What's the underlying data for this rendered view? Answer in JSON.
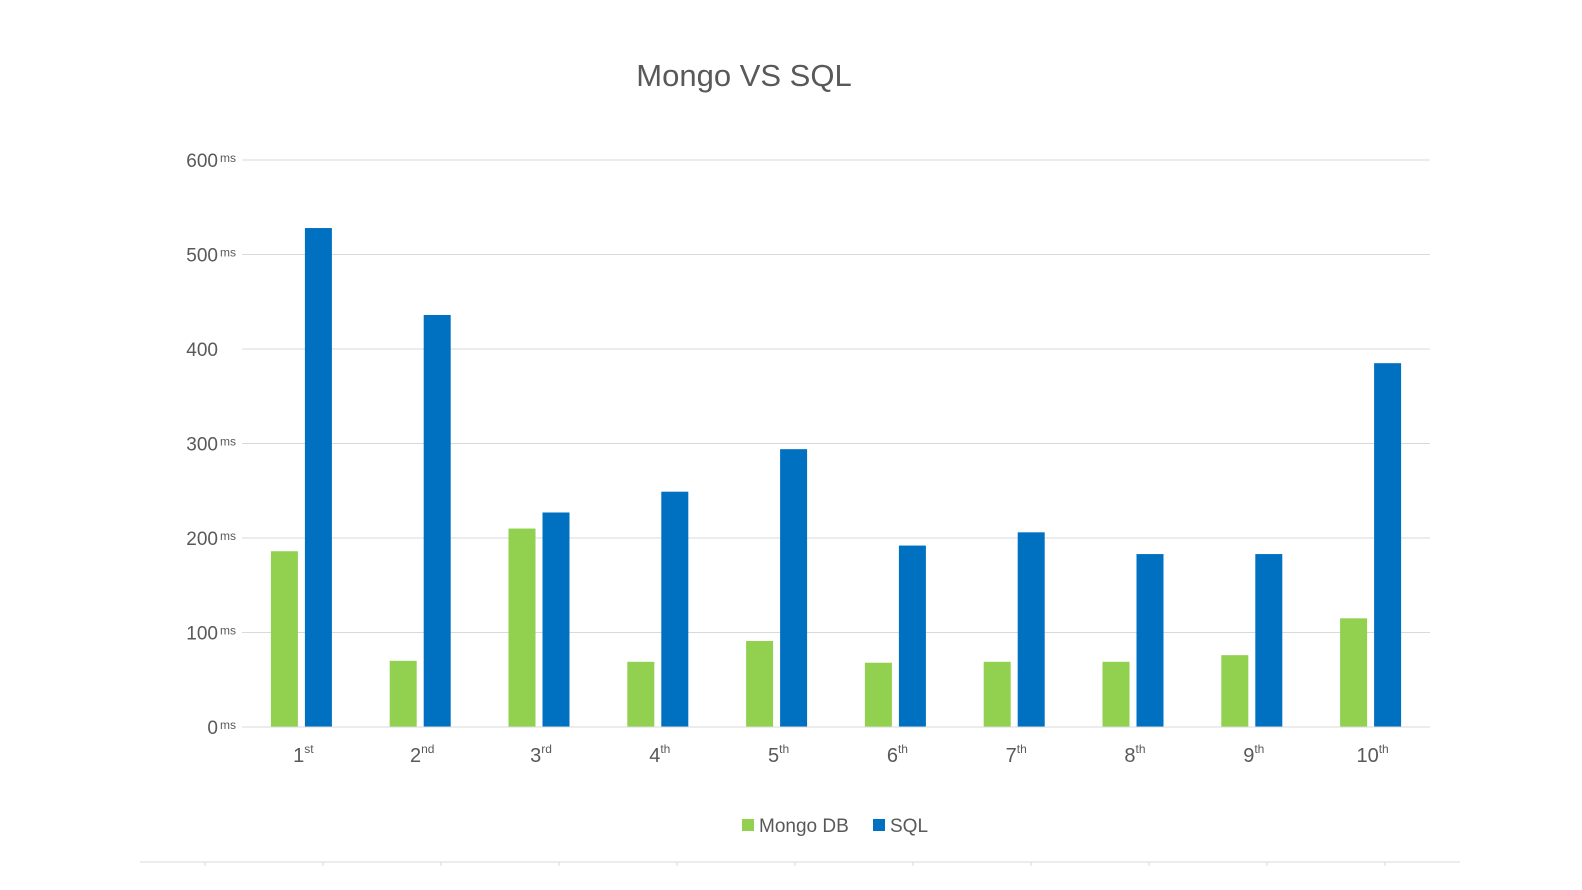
{
  "chart_data": {
    "type": "bar",
    "title": "Mongo VS SQL",
    "xlabel": "",
    "ylabel": "",
    "ylim": [
      0,
      600
    ],
    "grid": true,
    "legend_position": "bottom",
    "y_ticks": [
      {
        "value": 0,
        "label": "0",
        "unit": "ms"
      },
      {
        "value": 100,
        "label": "100",
        "unit": "ms"
      },
      {
        "value": 200,
        "label": "200",
        "unit": "ms"
      },
      {
        "value": 300,
        "label": "300",
        "unit": "ms"
      },
      {
        "value": 400,
        "label": "400",
        "unit": ""
      },
      {
        "value": 500,
        "label": "500",
        "unit": "ms"
      },
      {
        "value": 600,
        "label": "600",
        "unit": "ms"
      }
    ],
    "categories": [
      {
        "num": "1",
        "suffix": "st"
      },
      {
        "num": "2",
        "suffix": "nd"
      },
      {
        "num": "3",
        "suffix": "rd"
      },
      {
        "num": "4",
        "suffix": "th"
      },
      {
        "num": "5",
        "suffix": "th"
      },
      {
        "num": "6",
        "suffix": "th"
      },
      {
        "num": "7",
        "suffix": "th"
      },
      {
        "num": "8",
        "suffix": "th"
      },
      {
        "num": "9",
        "suffix": "th"
      },
      {
        "num": "10",
        "suffix": "th"
      }
    ],
    "series": [
      {
        "name": "Mongo DB",
        "color": "#92d050",
        "values": [
          186,
          70,
          210,
          69,
          91,
          68,
          69,
          69,
          76,
          115
        ]
      },
      {
        "name": "SQL",
        "color": "#0070c0",
        "values": [
          528,
          436,
          227,
          249,
          294,
          192,
          206,
          183,
          183,
          385
        ]
      }
    ]
  }
}
